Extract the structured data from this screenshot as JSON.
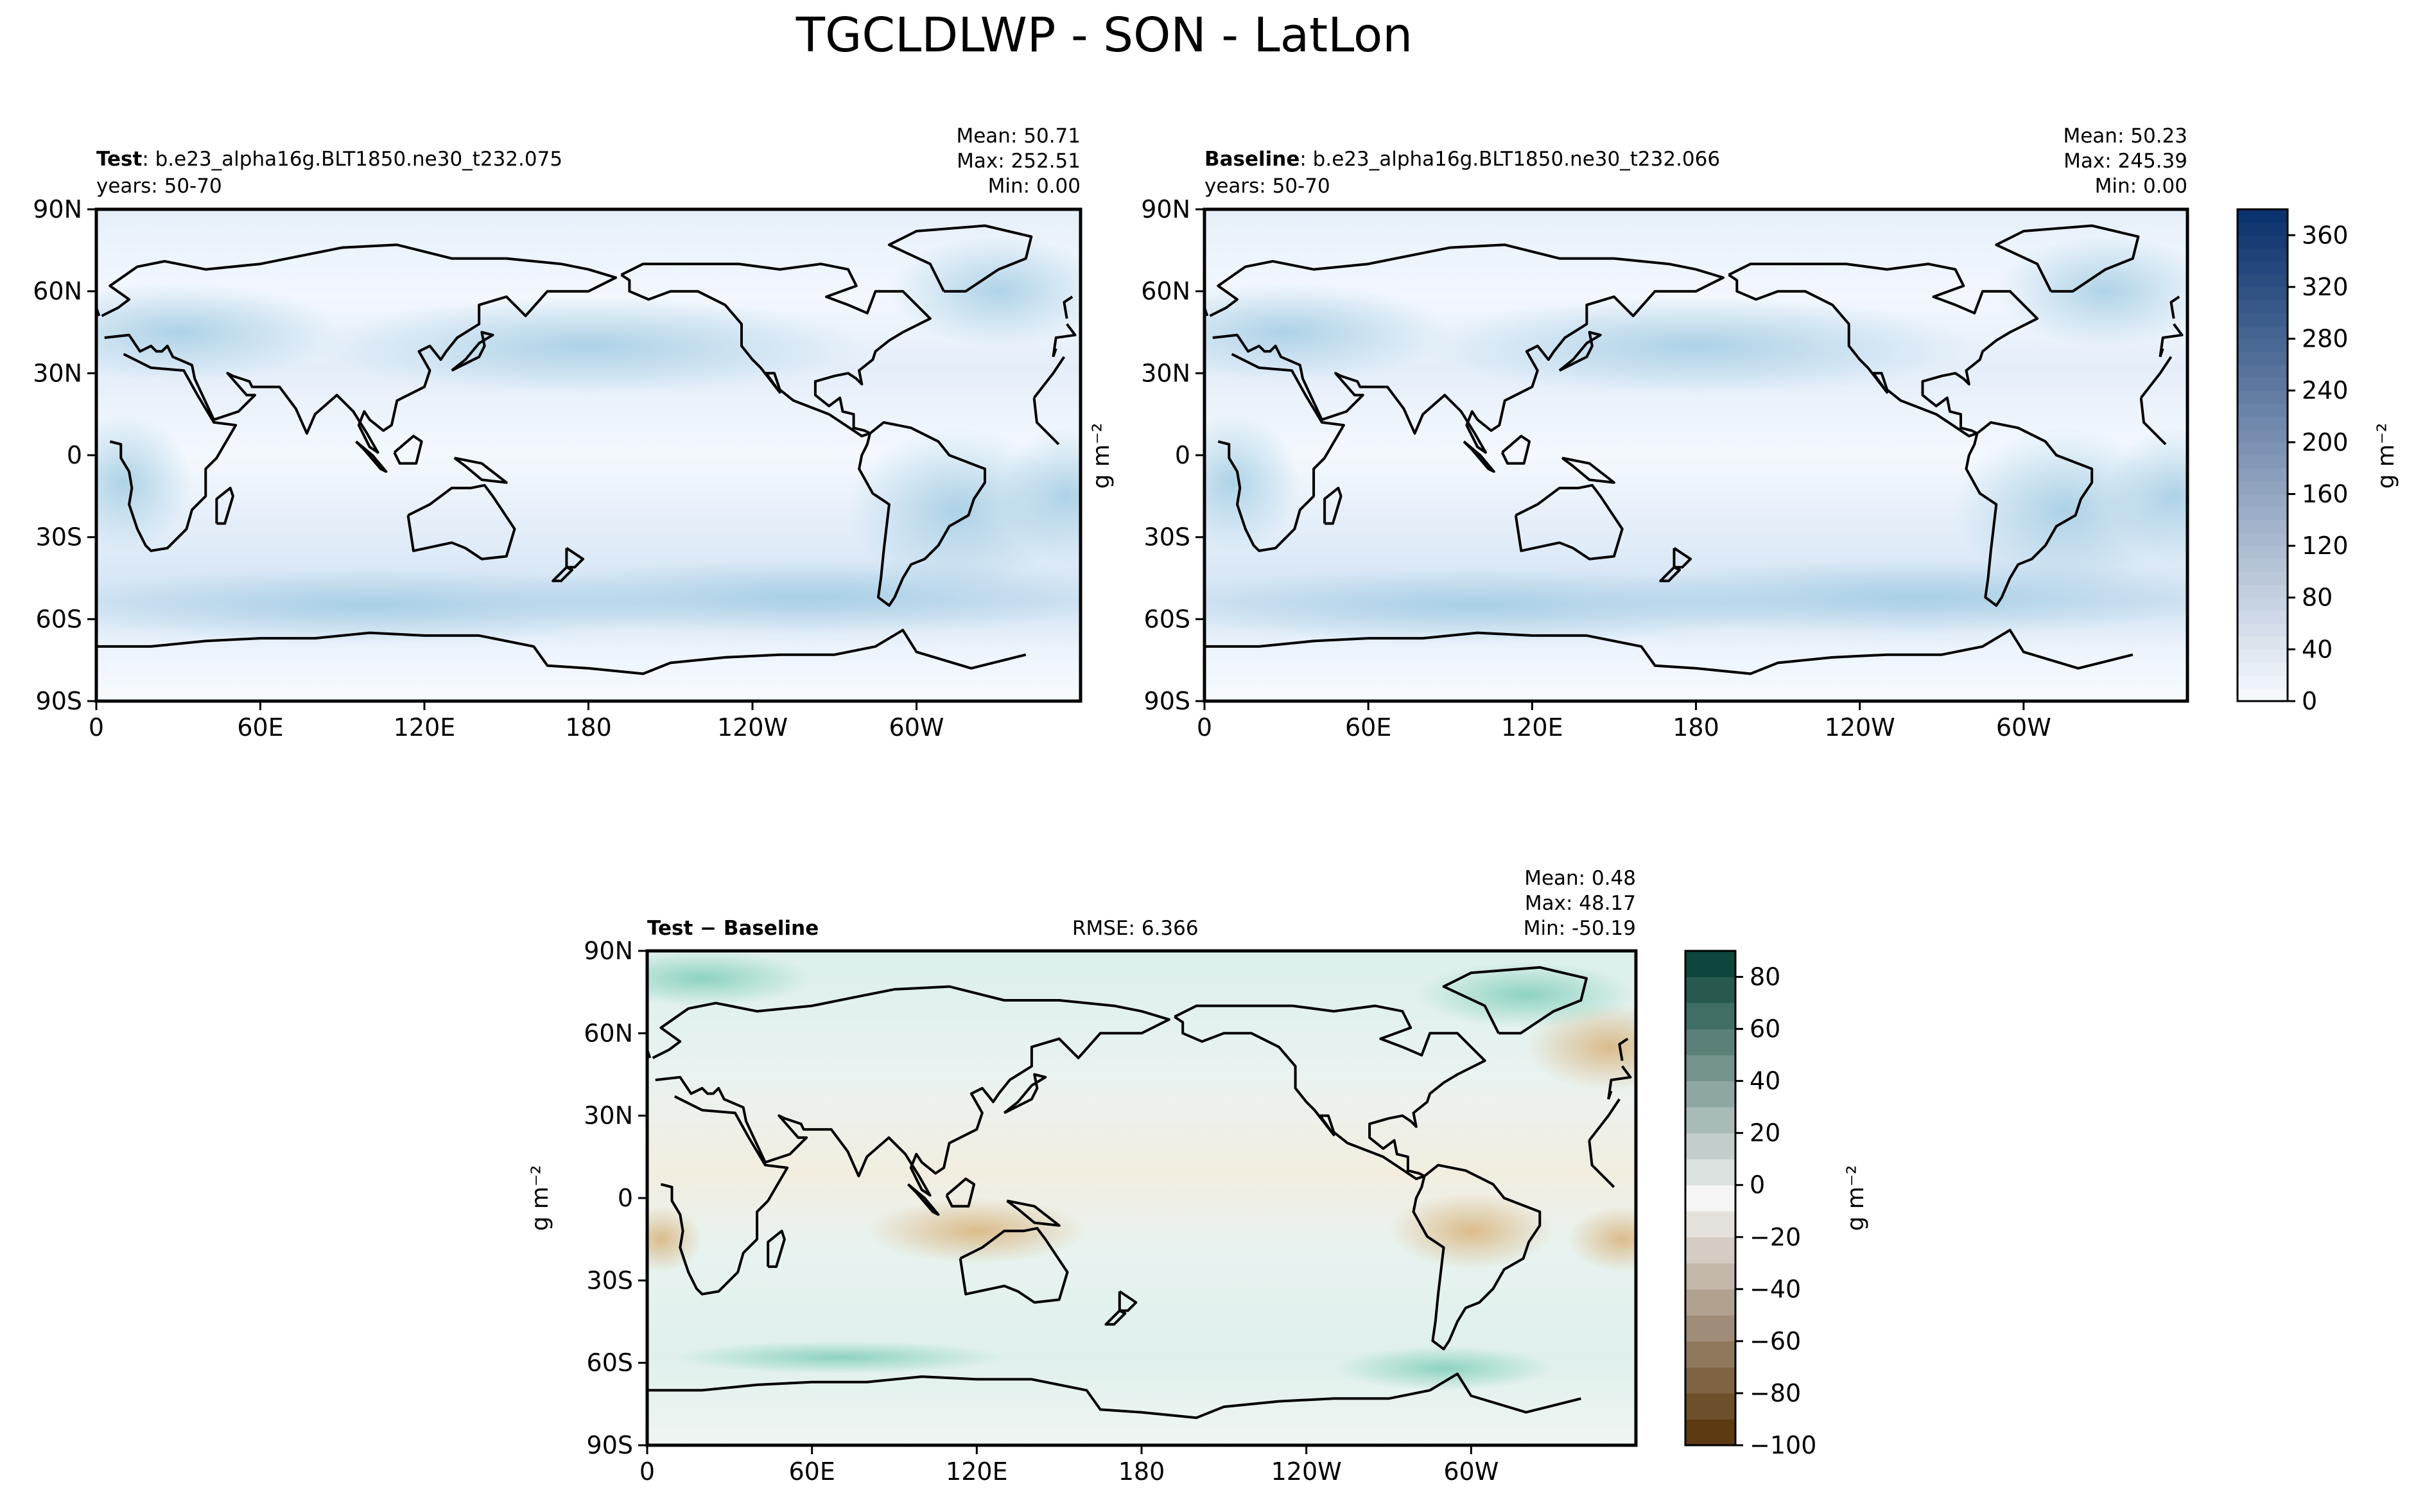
{
  "figure": {
    "title": "TGCLDLWP - SON - LatLon"
  },
  "lon_ticks": [
    "0",
    "60E",
    "120E",
    "180",
    "120W",
    "60W"
  ],
  "lat_ticks": [
    "90N",
    "60N",
    "30N",
    "0",
    "30S",
    "60S",
    "90S"
  ],
  "panels": {
    "test": {
      "label_bold": "Test",
      "label_rest": ": b.e23_alpha16g.BLT1850.ne30_t232.075",
      "years": "years: 50-70",
      "mean": "Mean: 50.71",
      "max": "Max: 252.51",
      "min": "Min:  0.00"
    },
    "baseline": {
      "label_bold": "Baseline",
      "label_rest": ": b.e23_alpha16g.BLT1850.ne30_t232.066",
      "years": "years: 50-70",
      "mean": "Mean: 50.23",
      "max": "Max: 245.39",
      "min": "Min:  0.00"
    },
    "diff": {
      "label_bold": "Test − Baseline",
      "rmse": "RMSE: 6.366",
      "mean": "Mean:  0.48",
      "max": "Max: 48.17",
      "min": "Min: -50.19"
    }
  },
  "colorbars": {
    "main": {
      "label": "g m⁻²",
      "ticks": [
        "0",
        "40",
        "80",
        "120",
        "160",
        "200",
        "240",
        "280",
        "320",
        "360"
      ],
      "colors": [
        "#f7fbff",
        "#08306b"
      ]
    },
    "diff": {
      "label": "g m⁻²",
      "ticks": [
        "−100",
        "−80",
        "−60",
        "−40",
        "−20",
        "0",
        "20",
        "40",
        "60",
        "80"
      ],
      "colors": [
        "#543005",
        "#f5f5f5",
        "#003c30"
      ]
    }
  },
  "ylabels": {
    "main": "g m⁻²",
    "diff": "g m⁻²"
  },
  "chart_data": [
    {
      "type": "heatmap",
      "title": "Test : b.e23_alpha16g.BLT1850.ne30_t232.075",
      "variable": "TGCLDLWP",
      "season": "SON",
      "units": "g m⁻²",
      "stats": {
        "mean": 50.71,
        "max": 252.51,
        "min": 0.0
      },
      "xlim": [
        0,
        360
      ],
      "ylim": [
        -90,
        90
      ],
      "color_range": [
        0,
        380
      ],
      "colormap": "Blues"
    },
    {
      "type": "heatmap",
      "title": "Baseline : b.e23_alpha16g.BLT1850.ne30_t232.066",
      "variable": "TGCLDLWP",
      "season": "SON",
      "units": "g m⁻²",
      "stats": {
        "mean": 50.23,
        "max": 245.39,
        "min": 0.0
      },
      "xlim": [
        0,
        360
      ],
      "ylim": [
        -90,
        90
      ],
      "color_range": [
        0,
        380
      ],
      "colormap": "Blues"
    },
    {
      "type": "heatmap",
      "title": "Test − Baseline",
      "variable": "TGCLDLWP",
      "season": "SON",
      "units": "g m⁻²",
      "stats": {
        "mean": 0.48,
        "max": 48.17,
        "min": -50.19,
        "rmse": 6.366
      },
      "xlim": [
        0,
        360
      ],
      "ylim": [
        -90,
        90
      ],
      "color_range": [
        -100,
        90
      ],
      "colormap": "BrBG"
    }
  ]
}
